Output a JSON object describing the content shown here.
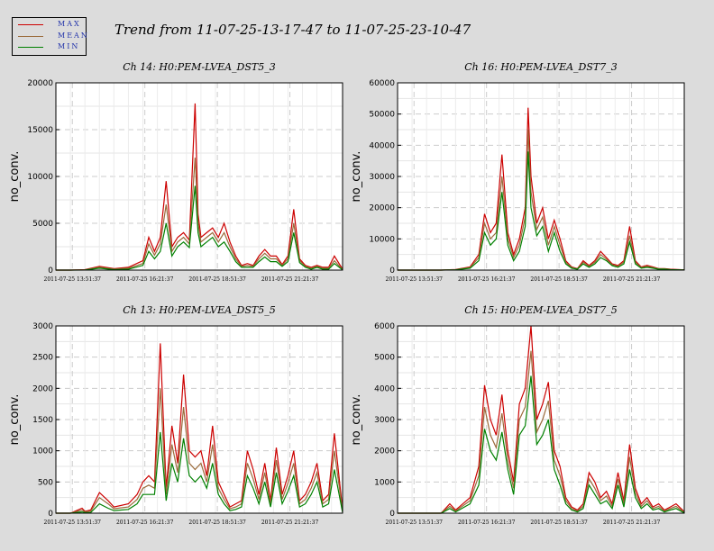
{
  "title": "Trend from 11-07-25-13-17-47 to 11-07-25-23-10-47",
  "legend": [
    {
      "label": "MAX",
      "color": "#cc0000"
    },
    {
      "label": "MEAN",
      "color": "#9a6a3a"
    },
    {
      "label": "MIN",
      "color": "#008000"
    }
  ],
  "chart_data": [
    {
      "type": "line",
      "title": "Ch 14: H0:PEM-LVEA_DST5_3",
      "ylabel": "no_conv.",
      "xlabel": "",
      "xlim": [
        0,
        9.883
      ],
      "ylim": [
        0,
        20000
      ],
      "yticks": [
        0,
        5000,
        10000,
        15000,
        20000
      ],
      "ytick_labels": [
        "0",
        "5000",
        "10000",
        "15000",
        "20000"
      ],
      "xticks": [
        0.567,
        3.067,
        5.567,
        8.067
      ],
      "xtick_labels": [
        "2011-07-25 13:51:37",
        "2011-07-25 16:21:37",
        "2011-07-25 18:51:37",
        "2011-07-25 21:21:37"
      ],
      "grid": true,
      "x": [
        0,
        0.5,
        1.0,
        1.5,
        2.0,
        2.5,
        3.0,
        3.2,
        3.4,
        3.6,
        3.8,
        4.0,
        4.2,
        4.4,
        4.6,
        4.8,
        4.9,
        5.0,
        5.2,
        5.4,
        5.6,
        5.8,
        6.0,
        6.2,
        6.4,
        6.6,
        6.8,
        7.0,
        7.2,
        7.4,
        7.6,
        7.8,
        8.0,
        8.2,
        8.4,
        8.6,
        8.8,
        9.0,
        9.2,
        9.4,
        9.6,
        9.883
      ],
      "series": [
        {
          "name": "MAX",
          "values": [
            0,
            0,
            50,
            400,
            150,
            300,
            1000,
            3500,
            2000,
            3500,
            9500,
            2500,
            3500,
            4000,
            3200,
            17800,
            6000,
            3500,
            4000,
            4500,
            3500,
            5000,
            3000,
            1500,
            500,
            700,
            500,
            1500,
            2200,
            1500,
            1500,
            600,
            1500,
            6500,
            1200,
            500,
            300,
            500,
            300,
            300,
            1500,
            100
          ]
        },
        {
          "name": "MEAN",
          "values": [
            0,
            0,
            30,
            300,
            100,
            200,
            700,
            2800,
            1600,
            2800,
            7000,
            2000,
            3000,
            3500,
            2800,
            12000,
            5000,
            3000,
            3500,
            4000,
            3000,
            4000,
            2500,
            1200,
            400,
            500,
            400,
            1200,
            1800,
            1200,
            1200,
            500,
            1200,
            5000,
            1000,
            400,
            200,
            400,
            200,
            200,
            1000,
            50
          ]
        },
        {
          "name": "MIN",
          "values": [
            0,
            0,
            10,
            200,
            50,
            100,
            500,
            2000,
            1200,
            2000,
            5000,
            1500,
            2500,
            3000,
            2400,
            9000,
            4000,
            2500,
            3000,
            3500,
            2500,
            3000,
            2000,
            900,
            300,
            300,
            300,
            900,
            1400,
            900,
            900,
            400,
            900,
            4000,
            800,
            300,
            100,
            300,
            100,
            100,
            700,
            20
          ]
        }
      ]
    },
    {
      "type": "line",
      "title": "Ch 16: H0:PEM-LVEA_DST7_3",
      "ylabel": "no_conv.",
      "xlabel": "",
      "xlim": [
        0,
        9.883
      ],
      "ylim": [
        0,
        60000
      ],
      "yticks": [
        0,
        10000,
        20000,
        30000,
        40000,
        50000,
        60000
      ],
      "ytick_labels": [
        "0",
        "10000",
        "20000",
        "30000",
        "40000",
        "50000",
        "60000"
      ],
      "xticks": [
        0.567,
        3.067,
        5.567,
        8.067
      ],
      "xtick_labels": [
        "2011-07-25 13:51:37",
        "2011-07-25 16:21:37",
        "2011-07-25 18:51:37",
        "2011-07-25 21:21:37"
      ],
      "grid": true,
      "x": [
        0,
        0.5,
        1.0,
        1.5,
        2.0,
        2.5,
        2.8,
        3.0,
        3.2,
        3.4,
        3.6,
        3.8,
        4.0,
        4.2,
        4.4,
        4.5,
        4.6,
        4.8,
        5.0,
        5.2,
        5.4,
        5.6,
        5.8,
        6.0,
        6.2,
        6.4,
        6.6,
        6.8,
        7.0,
        7.2,
        7.4,
        7.6,
        7.8,
        8.0,
        8.2,
        8.4,
        8.6,
        8.8,
        9.0,
        9.2,
        9.4,
        9.883
      ],
      "series": [
        {
          "name": "MAX",
          "values": [
            0,
            0,
            0,
            0,
            200,
            1000,
            5000,
            18000,
            12000,
            15000,
            37000,
            12000,
            5000,
            10000,
            20000,
            52000,
            30000,
            15000,
            20000,
            10000,
            16000,
            10000,
            3000,
            1000,
            500,
            3000,
            1500,
            3000,
            6000,
            4000,
            2000,
            1500,
            3000,
            14000,
            3000,
            1000,
            1500,
            1000,
            500,
            500,
            300,
            100
          ]
        },
        {
          "name": "MEAN",
          "values": [
            0,
            0,
            0,
            0,
            150,
            800,
            4000,
            15000,
            10000,
            12000,
            30000,
            10000,
            4000,
            8000,
            17000,
            45000,
            25000,
            13000,
            17000,
            8000,
            14000,
            8000,
            2500,
            800,
            400,
            2500,
            1200,
            2500,
            5000,
            3500,
            1700,
            1200,
            2500,
            11000,
            2500,
            800,
            1200,
            800,
            400,
            400,
            200,
            50
          ]
        },
        {
          "name": "MIN",
          "values": [
            0,
            0,
            0,
            0,
            100,
            600,
            3000,
            12000,
            8000,
            10000,
            25000,
            8000,
            3000,
            6000,
            14000,
            38000,
            20000,
            11000,
            14000,
            6000,
            12000,
            6000,
            2000,
            600,
            300,
            2000,
            900,
            2000,
            4000,
            3000,
            1400,
            900,
            2000,
            9000,
            2000,
            600,
            900,
            600,
            300,
            300,
            150,
            20
          ]
        }
      ]
    },
    {
      "type": "line",
      "title": "Ch 13: H0:PEM-LVEA_DST5_5",
      "ylabel": "no_conv.",
      "xlabel": "",
      "xlim": [
        0,
        9.883
      ],
      "ylim": [
        0,
        3000
      ],
      "yticks": [
        0,
        500,
        1000,
        1500,
        2000,
        2500,
        3000
      ],
      "ytick_labels": [
        "0",
        "500",
        "1000",
        "1500",
        "2000",
        "2500",
        "3000"
      ],
      "xticks": [
        0.567,
        3.067,
        5.567,
        8.067
      ],
      "xtick_labels": [
        "2011-07-25 13:51:37",
        "2011-07-25 16:21:37",
        "2011-07-25 18:51:37",
        "2011-07-25 21:21:37"
      ],
      "grid": true,
      "x": [
        0,
        0.5,
        0.9,
        1.0,
        1.2,
        1.5,
        1.8,
        2.0,
        2.5,
        2.8,
        3.0,
        3.2,
        3.4,
        3.6,
        3.8,
        4.0,
        4.2,
        4.4,
        4.6,
        4.8,
        5.0,
        5.2,
        5.4,
        5.6,
        5.8,
        6.0,
        6.2,
        6.4,
        6.6,
        6.8,
        7.0,
        7.2,
        7.4,
        7.6,
        7.8,
        8.0,
        8.2,
        8.4,
        8.6,
        8.8,
        9.0,
        9.2,
        9.4,
        9.6,
        9.883
      ],
      "series": [
        {
          "name": "MAX",
          "values": [
            0,
            0,
            80,
            30,
            50,
            330,
            200,
            100,
            150,
            300,
            500,
            600,
            500,
            2720,
            400,
            1400,
            800,
            2220,
            1000,
            900,
            1000,
            600,
            1400,
            500,
            300,
            100,
            150,
            200,
            1000,
            700,
            300,
            800,
            200,
            1050,
            300,
            600,
            1000,
            200,
            300,
            500,
            800,
            200,
            300,
            1280,
            50
          ]
        },
        {
          "name": "MEAN",
          "values": [
            0,
            0,
            50,
            20,
            30,
            250,
            150,
            70,
            100,
            220,
            400,
            450,
            400,
            2000,
            300,
            1100,
            650,
            1700,
            800,
            700,
            800,
            500,
            1100,
            400,
            220,
            70,
            100,
            150,
            800,
            550,
            220,
            650,
            150,
            850,
            220,
            480,
            800,
            150,
            220,
            400,
            650,
            150,
            220,
            1000,
            30
          ]
        },
        {
          "name": "MIN",
          "values": [
            0,
            0,
            20,
            10,
            10,
            150,
            80,
            40,
            60,
            150,
            300,
            300,
            300,
            1300,
            200,
            800,
            500,
            1200,
            600,
            500,
            600,
            400,
            800,
            300,
            150,
            40,
            60,
            100,
            600,
            400,
            150,
            500,
            100,
            650,
            150,
            350,
            600,
            100,
            150,
            300,
            500,
            100,
            150,
            700,
            10
          ]
        }
      ]
    },
    {
      "type": "line",
      "title": "Ch 15: H0:PEM-LVEA_DST7_5",
      "ylabel": "no_conv.",
      "xlabel": "",
      "xlim": [
        0,
        9.883
      ],
      "ylim": [
        0,
        6000
      ],
      "yticks": [
        0,
        1000,
        2000,
        3000,
        4000,
        5000,
        6000
      ],
      "ytick_labels": [
        "0",
        "1000",
        "2000",
        "3000",
        "4000",
        "5000",
        "6000"
      ],
      "xticks": [
        0.567,
        3.067,
        5.567,
        8.067
      ],
      "xtick_labels": [
        "2011-07-25 13:51:37",
        "2011-07-25 16:21:37",
        "2011-07-25 18:51:37",
        "2011-07-25 21:21:37"
      ],
      "grid": true,
      "x": [
        0,
        0.5,
        1.0,
        1.5,
        1.8,
        2.0,
        2.5,
        2.8,
        3.0,
        3.2,
        3.4,
        3.6,
        3.8,
        4.0,
        4.2,
        4.4,
        4.6,
        4.8,
        5.0,
        5.2,
        5.4,
        5.6,
        5.8,
        6.0,
        6.2,
        6.4,
        6.6,
        6.8,
        7.0,
        7.2,
        7.4,
        7.6,
        7.8,
        8.0,
        8.2,
        8.4,
        8.6,
        8.8,
        9.0,
        9.2,
        9.4,
        9.6,
        9.883
      ],
      "series": [
        {
          "name": "MAX",
          "values": [
            0,
            0,
            0,
            0,
            300,
            100,
            500,
            1500,
            4100,
            3000,
            2500,
            3800,
            2000,
            1000,
            3500,
            4000,
            6000,
            3000,
            3500,
            4200,
            2000,
            1500,
            500,
            200,
            100,
            300,
            1300,
            1000,
            500,
            700,
            300,
            1300,
            400,
            2200,
            800,
            300,
            500,
            200,
            300,
            100,
            200,
            300,
            50
          ]
        },
        {
          "name": "MEAN",
          "values": [
            0,
            0,
            0,
            0,
            220,
            70,
            400,
            1200,
            3400,
            2500,
            2100,
            3200,
            1700,
            800,
            3000,
            3400,
            5200,
            2600,
            3000,
            3600,
            1700,
            1200,
            400,
            150,
            70,
            220,
            1100,
            800,
            400,
            550,
            220,
            1100,
            300,
            1800,
            650,
            220,
            400,
            150,
            220,
            70,
            150,
            220,
            30
          ]
        },
        {
          "name": "MIN",
          "values": [
            0,
            0,
            0,
            0,
            150,
            40,
            300,
            900,
            2700,
            2000,
            1700,
            2600,
            1400,
            600,
            2500,
            2800,
            4400,
            2200,
            2500,
            3000,
            1400,
            900,
            300,
            100,
            40,
            150,
            900,
            600,
            300,
            400,
            150,
            900,
            200,
            1400,
            500,
            150,
            300,
            100,
            150,
            40,
            100,
            150,
            10
          ]
        }
      ]
    }
  ]
}
